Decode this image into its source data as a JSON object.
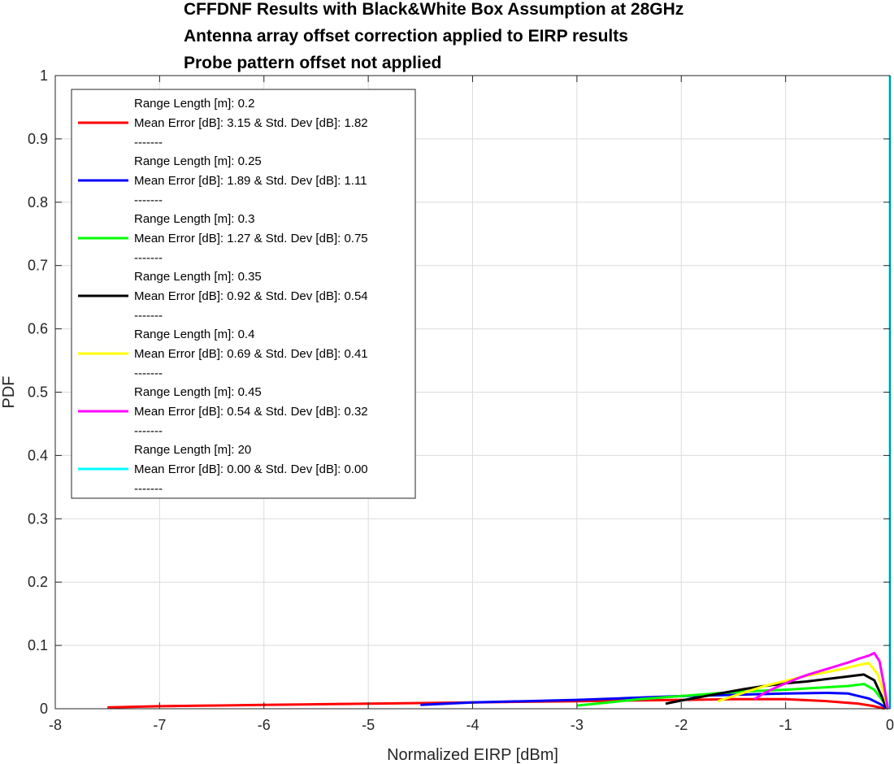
{
  "chart_data": {
    "type": "line",
    "title": [
      "CFFDNF Results with Black&White Box Assumption at 28GHz",
      "Antenna array offset correction applied to EIRP results",
      "Probe pattern offset not applied"
    ],
    "xlabel": "Normalized EIRP [dBm]",
    "ylabel": "PDF",
    "xlim": [
      -8,
      0
    ],
    "ylim": [
      0,
      1
    ],
    "xticks": [
      "-8",
      "-7",
      "-6",
      "-5",
      "-4",
      "-3",
      "-2",
      "-1",
      "0"
    ],
    "yticks": [
      "0",
      "0.1",
      "0.2",
      "0.3",
      "0.4",
      "0.5",
      "0.6",
      "0.7",
      "0.8",
      "0.9",
      "1"
    ],
    "grid": true,
    "legend_position": "top-left",
    "series": [
      {
        "color": "#ff0000",
        "legend": [
          "Range Length [m]: 0.2",
          "Mean Error [dB]: 3.15 & Std. Dev [dB]: 1.82",
          "-------"
        ],
        "x": [
          -7.5,
          -7.0,
          -6.5,
          -6.0,
          -5.5,
          -5.0,
          -4.5,
          -4.0,
          -3.5,
          -3.0,
          -2.5,
          -2.0,
          -1.5,
          -1.0,
          -0.6,
          -0.3,
          -0.15,
          -0.05
        ],
        "y": [
          0.002,
          0.004,
          0.005,
          0.006,
          0.007,
          0.008,
          0.009,
          0.01,
          0.011,
          0.012,
          0.013,
          0.014,
          0.015,
          0.015,
          0.012,
          0.008,
          0.004,
          0.0
        ]
      },
      {
        "color": "#0000ff",
        "legend": [
          "Range Length [m]: 0.25",
          "Mean Error [dB]: 1.89 & Std. Dev [dB]: 1.11",
          "-------"
        ],
        "x": [
          -4.5,
          -4.0,
          -3.5,
          -3.0,
          -2.5,
          -2.0,
          -1.5,
          -1.0,
          -0.6,
          -0.4,
          -0.3,
          -0.2,
          -0.1,
          -0.02
        ],
        "y": [
          0.006,
          0.01,
          0.012,
          0.014,
          0.017,
          0.02,
          0.022,
          0.024,
          0.025,
          0.024,
          0.02,
          0.016,
          0.008,
          0.0
        ]
      },
      {
        "color": "#00ff00",
        "legend": [
          "Range Length [m]: 0.3",
          "Mean Error [dB]: 1.27 & Std. Dev [dB]: 0.75",
          "-------"
        ],
        "x": [
          -3.0,
          -2.7,
          -2.4,
          -2.0,
          -1.6,
          -1.3,
          -1.0,
          -0.7,
          -0.4,
          -0.25,
          -0.15,
          -0.08,
          -0.02
        ],
        "y": [
          0.005,
          0.01,
          0.015,
          0.02,
          0.025,
          0.028,
          0.03,
          0.033,
          0.036,
          0.039,
          0.03,
          0.015,
          0.0
        ]
      },
      {
        "color": "#000000",
        "legend": [
          "Range Length [m]: 0.35",
          "Mean Error [dB]: 0.92 & Std. Dev [dB]: 0.54",
          "-------"
        ],
        "x": [
          -2.15,
          -2.0,
          -1.8,
          -1.6,
          -1.4,
          -1.2,
          -1.0,
          -0.8,
          -0.6,
          -0.4,
          -0.25,
          -0.15,
          -0.08,
          -0.03
        ],
        "y": [
          0.008,
          0.013,
          0.019,
          0.025,
          0.031,
          0.036,
          0.04,
          0.043,
          0.047,
          0.051,
          0.054,
          0.045,
          0.02,
          0.0
        ]
      },
      {
        "color": "#ffff00",
        "legend": [
          "Range Length [m]: 0.4",
          "Mean Error [dB]: 0.69 & Std. Dev [dB]: 0.41",
          "-------"
        ],
        "x": [
          -1.65,
          -1.5,
          -1.35,
          -1.2,
          -1.0,
          -0.8,
          -0.6,
          -0.45,
          -0.3,
          -0.2,
          -0.12,
          -0.06,
          -0.02
        ],
        "y": [
          0.012,
          0.02,
          0.028,
          0.036,
          0.044,
          0.052,
          0.058,
          0.063,
          0.069,
          0.072,
          0.055,
          0.025,
          0.0
        ]
      },
      {
        "color": "#ff00ff",
        "legend": [
          "Range Length [m]: 0.45",
          "Mean Error [dB]: 0.54 & Std. Dev [dB]: 0.32",
          "-------"
        ],
        "x": [
          -1.3,
          -1.2,
          -1.1,
          -1.0,
          -0.9,
          -0.8,
          -0.7,
          -0.6,
          -0.5,
          -0.4,
          -0.3,
          -0.2,
          -0.15,
          -0.1,
          -0.06,
          -0.02
        ],
        "y": [
          0.015,
          0.025,
          0.033,
          0.04,
          0.047,
          0.053,
          0.058,
          0.063,
          0.068,
          0.073,
          0.079,
          0.084,
          0.088,
          0.075,
          0.04,
          0.0
        ]
      },
      {
        "color": "#00ffff",
        "legend": [
          "Range Length [m]: 20",
          "Mean Error [dB]: 0.00 & Std. Dev [dB]: 0.00",
          "-------"
        ],
        "x": [
          0.0,
          0.0
        ],
        "y": [
          0.0,
          1.0
        ]
      }
    ]
  }
}
